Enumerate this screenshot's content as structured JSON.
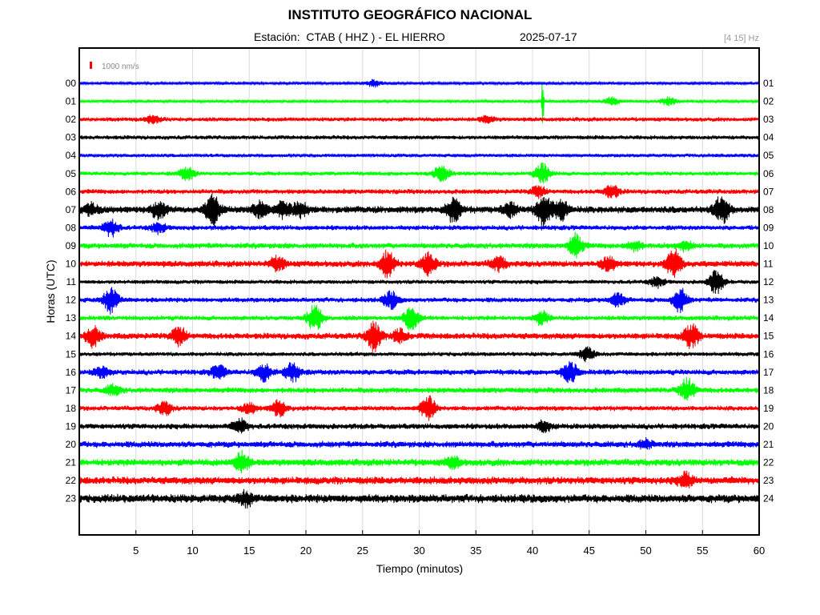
{
  "header": {
    "title": "INSTITUTO GEOGRÁFICO NACIONAL",
    "subtitle": "Estación:  CTAB ( HHZ ) - EL HIERRO",
    "date": "2025-07-17",
    "filter": "[4 15] Hz"
  },
  "chart_data": {
    "type": "line",
    "title": "INSTITUTO GEOGRÁFICO NACIONAL",
    "xlabel": "Tiempo (minutos)",
    "ylabel": "Horas (UTC)",
    "xlim": [
      0,
      60
    ],
    "x_ticks": [
      5,
      10,
      15,
      20,
      25,
      30,
      35,
      40,
      45,
      50,
      55,
      60
    ],
    "grid": true,
    "scale_bar": {
      "label": "1000 nm/s",
      "color": "#ff0000"
    },
    "left_hour_labels": [
      "00",
      "01",
      "02",
      "03",
      "04",
      "05",
      "06",
      "07",
      "08",
      "09",
      "10",
      "11",
      "12",
      "13",
      "14",
      "15",
      "16",
      "17",
      "18",
      "19",
      "20",
      "21",
      "22",
      "23"
    ],
    "right_hour_labels": [
      "01",
      "02",
      "03",
      "04",
      "05",
      "06",
      "07",
      "08",
      "09",
      "10",
      "11",
      "12",
      "13",
      "14",
      "15",
      "16",
      "17",
      "18",
      "19",
      "20",
      "21",
      "22",
      "23",
      "24"
    ],
    "trace_colors": [
      "#0000ff",
      "#00ff00",
      "#ff0000",
      "#000000"
    ],
    "traces": [
      {
        "hour": "00",
        "noise": 2,
        "events": [
          [
            26,
            4
          ]
        ]
      },
      {
        "hour": "01",
        "noise": 2,
        "events": [
          [
            40.9,
            36
          ],
          [
            47,
            5
          ],
          [
            52,
            5
          ]
        ]
      },
      {
        "hour": "02",
        "noise": 3,
        "events": [
          [
            6.5,
            5
          ],
          [
            36,
            4
          ]
        ]
      },
      {
        "hour": "03",
        "noise": 3,
        "events": []
      },
      {
        "hour": "04",
        "noise": 2.5,
        "events": []
      },
      {
        "hour": "05",
        "noise": 3,
        "events": [
          [
            9.5,
            8
          ],
          [
            32,
            10
          ],
          [
            40.9,
            12
          ]
        ]
      },
      {
        "hour": "06",
        "noise": 3.5,
        "events": [
          [
            47,
            8
          ],
          [
            40.5,
            6
          ]
        ]
      },
      {
        "hour": "07",
        "noise": 5,
        "events": [
          [
            1,
            7
          ],
          [
            7,
            10
          ],
          [
            11.8,
            18
          ],
          [
            16,
            10
          ],
          [
            18,
            10
          ],
          [
            19.5,
            10
          ],
          [
            33,
            15
          ],
          [
            38,
            8
          ],
          [
            41,
            20
          ],
          [
            42.5,
            12
          ],
          [
            56.7,
            16
          ]
        ]
      },
      {
        "hour": "08",
        "noise": 3.5,
        "events": [
          [
            2.8,
            10
          ],
          [
            7,
            6
          ]
        ]
      },
      {
        "hour": "09",
        "noise": 4,
        "events": [
          [
            43.8,
            14
          ],
          [
            49,
            6
          ],
          [
            53.5,
            6
          ]
        ]
      },
      {
        "hour": "10",
        "noise": 4.5,
        "events": [
          [
            17.5,
            8
          ],
          [
            27.2,
            16
          ],
          [
            30.8,
            14
          ],
          [
            37,
            8
          ],
          [
            46.7,
            8
          ],
          [
            52.5,
            18
          ]
        ]
      },
      {
        "hour": "11",
        "noise": 3,
        "events": [
          [
            56.2,
            14
          ],
          [
            51,
            6
          ]
        ]
      },
      {
        "hour": "12",
        "noise": 3.5,
        "events": [
          [
            2.8,
            16
          ],
          [
            27.5,
            10
          ],
          [
            47.5,
            8
          ],
          [
            53,
            14
          ]
        ]
      },
      {
        "hour": "13",
        "noise": 3.5,
        "events": [
          [
            20.8,
            16
          ],
          [
            29.3,
            14
          ],
          [
            40.8,
            8
          ]
        ]
      },
      {
        "hour": "14",
        "noise": 4.5,
        "events": [
          [
            1.2,
            12
          ],
          [
            8.8,
            10
          ],
          [
            26,
            18
          ],
          [
            28.3,
            8
          ],
          [
            54,
            14
          ]
        ]
      },
      {
        "hour": "15",
        "noise": 3,
        "events": [
          [
            44.8,
            8
          ]
        ]
      },
      {
        "hour": "16",
        "noise": 4,
        "events": [
          [
            2,
            6
          ],
          [
            12.3,
            8
          ],
          [
            16.3,
            10
          ],
          [
            18.8,
            12
          ],
          [
            43.3,
            12
          ]
        ]
      },
      {
        "hour": "17",
        "noise": 4,
        "events": [
          [
            3,
            6
          ],
          [
            53.7,
            14
          ]
        ]
      },
      {
        "hour": "18",
        "noise": 3.5,
        "events": [
          [
            7.5,
            8
          ],
          [
            17.6,
            10
          ],
          [
            30.8,
            16
          ],
          [
            15,
            6
          ]
        ]
      },
      {
        "hour": "19",
        "noise": 4,
        "events": [
          [
            14.2,
            8
          ],
          [
            41,
            6
          ]
        ]
      },
      {
        "hour": "20",
        "noise": 4.5,
        "events": [
          [
            50,
            5
          ]
        ]
      },
      {
        "hour": "21",
        "noise": 5,
        "events": [
          [
            14.3,
            12
          ],
          [
            33,
            6
          ]
        ]
      },
      {
        "hour": "22",
        "noise": 5.5,
        "events": [
          [
            53.5,
            8
          ]
        ]
      },
      {
        "hour": "23",
        "noise": 6,
        "events": [
          [
            14.7,
            8
          ]
        ]
      }
    ]
  }
}
